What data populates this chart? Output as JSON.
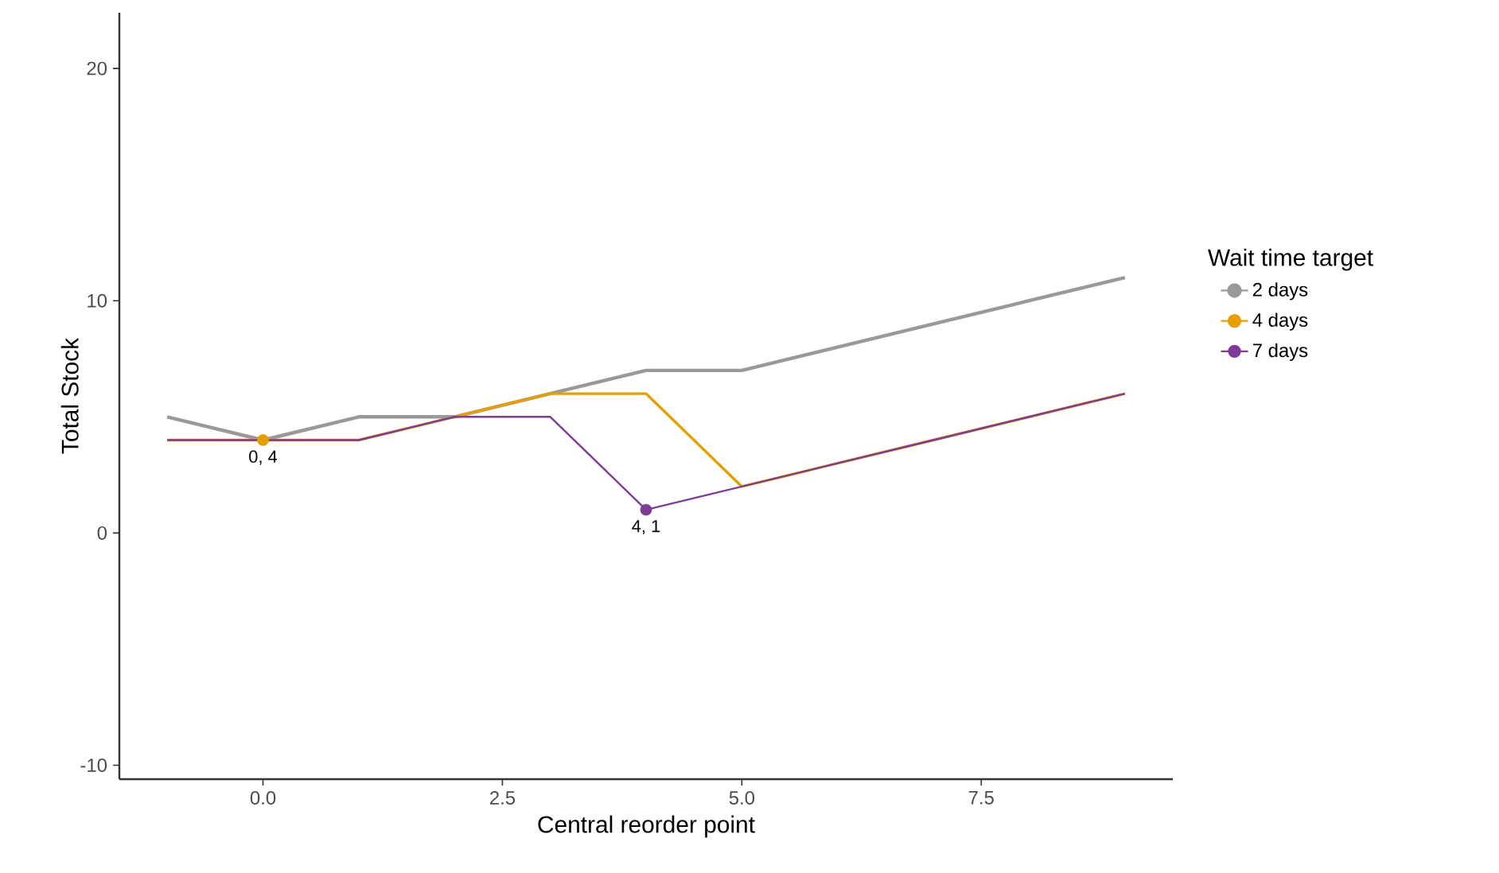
{
  "chart_data": {
    "type": "line",
    "xlabel": "Central reorder point",
    "ylabel": "Total Stock",
    "legend_title": "Wait time target",
    "legend": "right",
    "xlim": [
      -1.5,
      9.5
    ],
    "ylim": [
      -10.6,
      22.4
    ],
    "xticks": [
      {
        "value": 0,
        "label": "0.0"
      },
      {
        "value": 2.5,
        "label": "2.5"
      },
      {
        "value": 5,
        "label": "5.0"
      },
      {
        "value": 7.5,
        "label": "7.5"
      }
    ],
    "yticks": [
      -10,
      0,
      10,
      20
    ],
    "grid": false,
    "series": [
      {
        "name": "2 days",
        "color": "#999999",
        "x": [
          -1,
          0,
          1,
          2,
          3,
          4,
          5,
          6,
          7,
          8,
          9
        ],
        "values": [
          5,
          4,
          5,
          5,
          6,
          7,
          7,
          8,
          9,
          10,
          11
        ]
      },
      {
        "name": "4 days",
        "color": "#e69f00",
        "x": [
          -1,
          0,
          1,
          2,
          3,
          4,
          5,
          6,
          7,
          8,
          9
        ],
        "values": [
          4,
          4,
          4,
          5,
          6,
          6,
          2,
          3,
          4,
          5,
          6
        ]
      },
      {
        "name": "7 days",
        "color": "#7d3c98",
        "x": [
          -1,
          0,
          1,
          2,
          3,
          4,
          5,
          6,
          7,
          8,
          9
        ],
        "values": [
          4,
          4,
          4,
          5,
          5,
          1,
          2,
          3,
          4,
          5,
          6
        ]
      },
      {
        "type": "scatter",
        "marker": "circle",
        "color": "#e69f00",
        "x": [
          0
        ],
        "values": [
          4
        ]
      },
      {
        "type": "scatter",
        "marker": "circle",
        "color": "#7d3c98",
        "x": [
          4
        ],
        "values": [
          1
        ]
      }
    ],
    "annotations": [
      {
        "text": "0, 4",
        "x": 0,
        "y": 4
      },
      {
        "text": "4, 1",
        "x": 4,
        "y": 1
      }
    ]
  }
}
